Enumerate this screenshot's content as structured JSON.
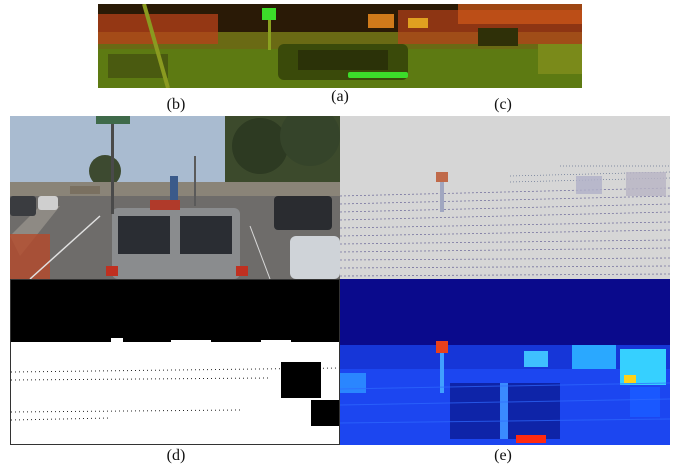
{
  "figure": {
    "labels": {
      "a": "(a)",
      "b": "(b)",
      "c": "(c)",
      "d": "(d)",
      "e": "(e)"
    },
    "panels": {
      "a": {
        "description_icon": "lidar-projection-colored"
      },
      "b": {
        "description_icon": "rgb-street-photo"
      },
      "c": {
        "description_icon": "sparse-depth-map"
      },
      "d": {
        "description_icon": "binary-valid-mask"
      },
      "e": {
        "description_icon": "dense-depth-heatmap"
      }
    },
    "colors": {
      "panel_a_bg": "#1c1a06",
      "panel_a_road": "#6b8a1a",
      "panel_a_far": "#b8421a",
      "panel_a_green": "#3cdd2a",
      "panel_c_bg": "#d6d6d6",
      "panel_d_bg": "#000000",
      "panel_d_fg": "#ffffff",
      "panel_e_bg": "#0a0a8c",
      "panel_e_mid": "#1a3cff",
      "panel_e_hot": "#ff2a10"
    }
  }
}
